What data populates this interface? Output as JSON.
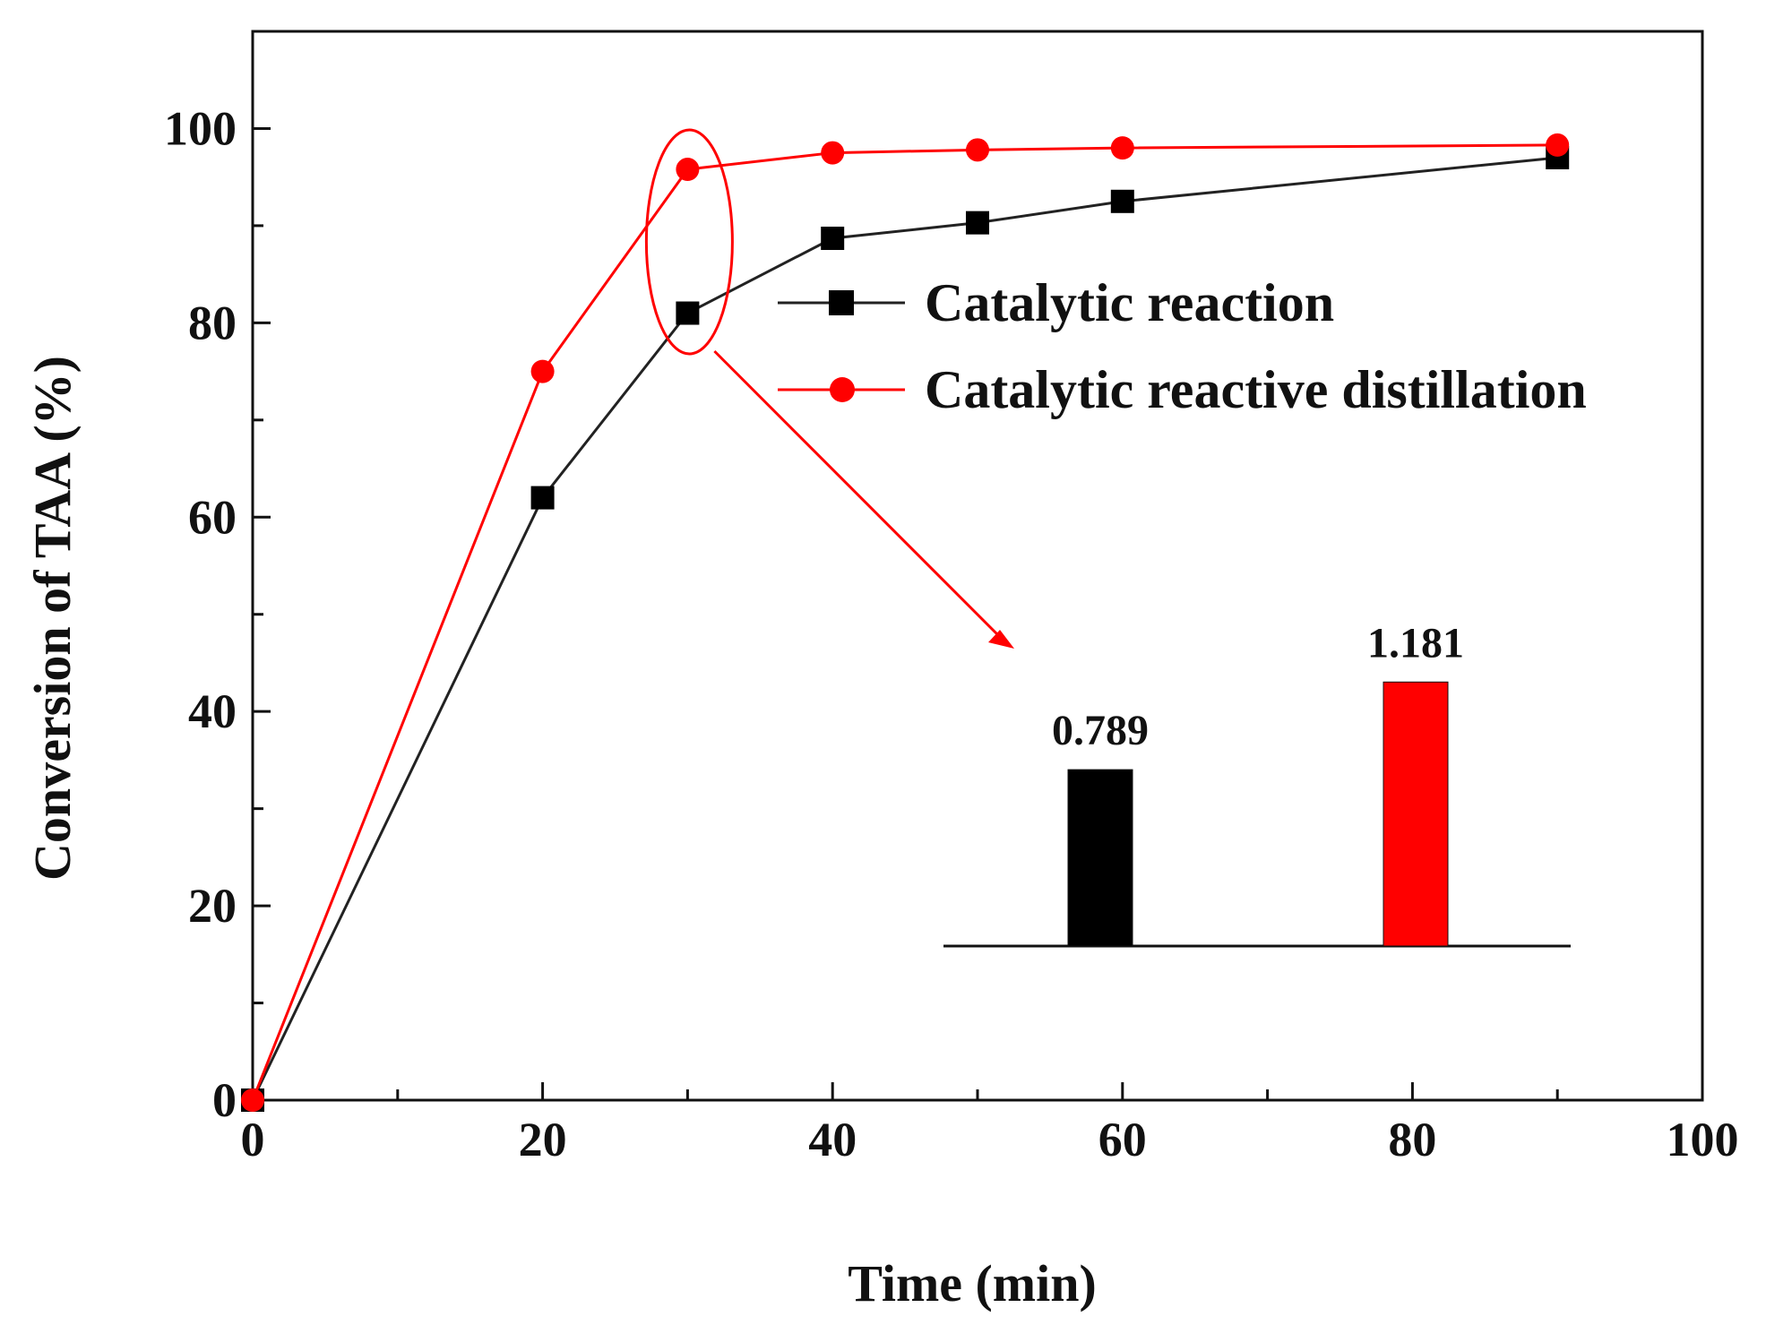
{
  "chart_data": {
    "type": "line",
    "title": "",
    "xlabel": "Time (min)",
    "ylabel": "Conversion of TAA (%)",
    "xlim": [
      0,
      100
    ],
    "ylim": [
      0,
      110
    ],
    "xticks": [
      0,
      20,
      40,
      60,
      80,
      100
    ],
    "yticks": [
      0,
      20,
      40,
      60,
      80,
      100
    ],
    "grid": false,
    "legend_position": "center-right",
    "series": [
      {
        "name": "Catalytic reaction",
        "color": "#000000",
        "marker": "square",
        "x": [
          0,
          20,
          30,
          40,
          50,
          60,
          90
        ],
        "y": [
          0,
          62,
          81,
          88.7,
          90.3,
          92.5,
          97
        ]
      },
      {
        "name": "Catalytic reactive distillation",
        "color": "#ff0000",
        "marker": "circle",
        "x": [
          0,
          20,
          30,
          40,
          50,
          60,
          90
        ],
        "y": [
          0,
          75,
          95.8,
          97.5,
          97.8,
          98,
          98.3
        ]
      }
    ],
    "highlight": {
      "x": 30,
      "shape": "ellipse",
      "color": "#ff0000"
    },
    "inset": {
      "type": "bar",
      "categories": [
        "Catalytic reaction",
        "Catalytic reactive distillation"
      ],
      "values": [
        0.789,
        1.181
      ],
      "labels": [
        "0.789",
        "1.181"
      ],
      "colors": [
        "#000000",
        "#ff0000"
      ]
    }
  }
}
